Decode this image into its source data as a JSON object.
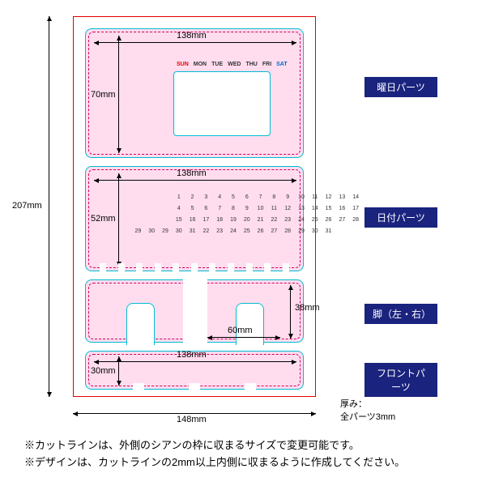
{
  "sheet": {
    "width_mm": 148,
    "height_mm": 207
  },
  "thickness_label": "厚み：",
  "thickness_value": "全パーツ3mm",
  "parts": {
    "weekday": {
      "label": "曜日パーツ",
      "w": "138mm",
      "h": "70mm"
    },
    "date": {
      "label": "日付パーツ",
      "w": "138mm",
      "h": "52mm"
    },
    "legs": {
      "label": "脚（左・右）",
      "w": "60mm",
      "h": "38mm"
    },
    "front": {
      "label": "フロントパーツ",
      "w": "138mm",
      "h": "30mm"
    }
  },
  "dims": {
    "outer_w": "148mm",
    "outer_h": "207mm"
  },
  "days": [
    "SUN",
    "MON",
    "TUE",
    "WED",
    "THU",
    "FRI",
    "SAT"
  ],
  "day_colors": [
    "#e30000",
    "#333",
    "#333",
    "#333",
    "#333",
    "#333",
    "#0066cc"
  ],
  "calendar_rows": [
    [
      "",
      "",
      "",
      "1",
      "2",
      "3",
      "4",
      "5",
      "6",
      "7",
      "8",
      "9",
      "10",
      "11",
      "12",
      "13",
      "14"
    ],
    [
      "",
      "",
      "",
      "4",
      "5",
      "6",
      "7",
      "8",
      "9",
      "10",
      "11",
      "12",
      "13",
      "14",
      "15",
      "16",
      "17"
    ],
    [
      "",
      "",
      "",
      "15",
      "16",
      "17",
      "18",
      "19",
      "20",
      "21",
      "22",
      "23",
      "24",
      "25",
      "26",
      "27",
      "28"
    ],
    [
      "29",
      "30",
      "29",
      "30",
      "31",
      "22",
      "23",
      "24",
      "25",
      "26",
      "27",
      "28",
      "29",
      "30",
      "31",
      "",
      ""
    ]
  ],
  "notes": [
    "※カットラインは、外側のシアンの枠に収まるサイズで変更可能です。",
    "※デザインは、カットラインの2mm以上内側に収まるように作成してください。"
  ]
}
